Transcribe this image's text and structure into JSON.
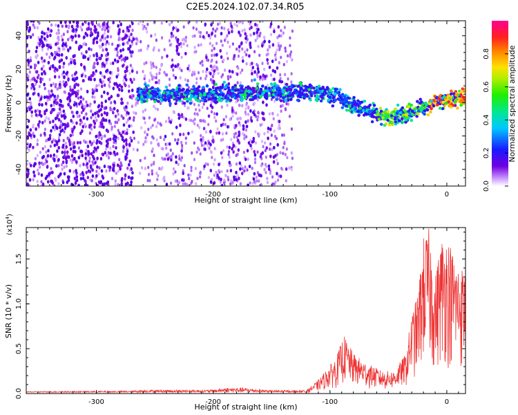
{
  "figure_title": "C2E5.2024.102.07.34.R05",
  "chart_data": [
    {
      "type": "heatmap",
      "xlabel": "Height of straight line (km)",
      "ylabel": "Frequency (Hz)",
      "xlim": [
        -360,
        16
      ],
      "ylim": [
        -50,
        49
      ],
      "xticks": [
        -300,
        -200,
        -100,
        0
      ],
      "xtick_labels": [
        "-300",
        "-200",
        "-100",
        "0"
      ],
      "yticks": [
        -40,
        -20,
        0,
        20,
        40
      ],
      "ytick_labels": [
        "-40",
        "-20",
        "0",
        "20",
        "40"
      ],
      "colorbar": {
        "label": "Normalized spectral amplitude",
        "range": [
          0,
          1
        ],
        "ticks": [
          0.0,
          0.2,
          0.4,
          0.6,
          0.8
        ],
        "tick_labels": [
          "0.0",
          "0.2",
          "0.4",
          "0.6",
          "0.8"
        ],
        "colormap": "rainbow (white-violet-blue-cyan-green-yellow-red-magenta)"
      },
      "features": {
        "noise_region_x": [
          -360,
          -132
        ],
        "dense_noise_x": [
          -360,
          -268
        ],
        "signal_band": [
          {
            "x": -265,
            "freq": 5
          },
          {
            "x": -200,
            "freq": 5
          },
          {
            "x": -150,
            "freq": 7
          },
          {
            "x": -110,
            "freq": 6
          },
          {
            "x": -95,
            "freq": 4
          },
          {
            "x": -85,
            "freq": 0
          },
          {
            "x": -70,
            "freq": -4
          },
          {
            "x": -55,
            "freq": -8
          },
          {
            "x": -45,
            "freq": -9
          },
          {
            "x": -35,
            "freq": -7
          },
          {
            "x": -25,
            "freq": -4
          },
          {
            "x": -10,
            "freq": 0
          },
          {
            "x": 16,
            "freq": 3
          }
        ]
      }
    },
    {
      "type": "line",
      "xlabel": "Height of straight line (km)",
      "ylabel": "SNR (10 * v/v)",
      "y_multiplier_label": "(x10",
      "y_multiplier_exp": "4",
      "y_multiplier_close": ")",
      "xlim": [
        -360,
        16
      ],
      "ylim": [
        0,
        1.85
      ],
      "xticks": [
        -300,
        -200,
        -100,
        0
      ],
      "xtick_labels": [
        "-300",
        "-200",
        "-100",
        "0"
      ],
      "yticks": [
        0.0,
        0.5,
        1.0,
        1.5
      ],
      "ytick_labels": [
        "0.0",
        "0.5",
        "1.0",
        "1.5"
      ],
      "color": "#ee3333",
      "envelope": [
        {
          "x": -360,
          "y": 0.02
        },
        {
          "x": -270,
          "y": 0.03
        },
        {
          "x": -260,
          "y": 0.05
        },
        {
          "x": -200,
          "y": 0.05
        },
        {
          "x": -190,
          "y": 0.09
        },
        {
          "x": -175,
          "y": 0.09
        },
        {
          "x": -150,
          "y": 0.04
        },
        {
          "x": -120,
          "y": 0.04
        },
        {
          "x": -110,
          "y": 0.15
        },
        {
          "x": -95,
          "y": 0.4
        },
        {
          "x": -88,
          "y": 0.65
        },
        {
          "x": -80,
          "y": 0.45
        },
        {
          "x": -70,
          "y": 0.35
        },
        {
          "x": -55,
          "y": 0.25
        },
        {
          "x": -45,
          "y": 0.25
        },
        {
          "x": -35,
          "y": 0.45
        },
        {
          "x": -30,
          "y": 0.9
        },
        {
          "x": -25,
          "y": 1.1
        },
        {
          "x": -20,
          "y": 1.75
        },
        {
          "x": -15,
          "y": 1.85
        },
        {
          "x": -10,
          "y": 1.3
        },
        {
          "x": -5,
          "y": 1.75
        },
        {
          "x": 0,
          "y": 1.8
        },
        {
          "x": 5,
          "y": 1.6
        },
        {
          "x": 10,
          "y": 1.45
        },
        {
          "x": 16,
          "y": 1.4
        }
      ]
    }
  ]
}
